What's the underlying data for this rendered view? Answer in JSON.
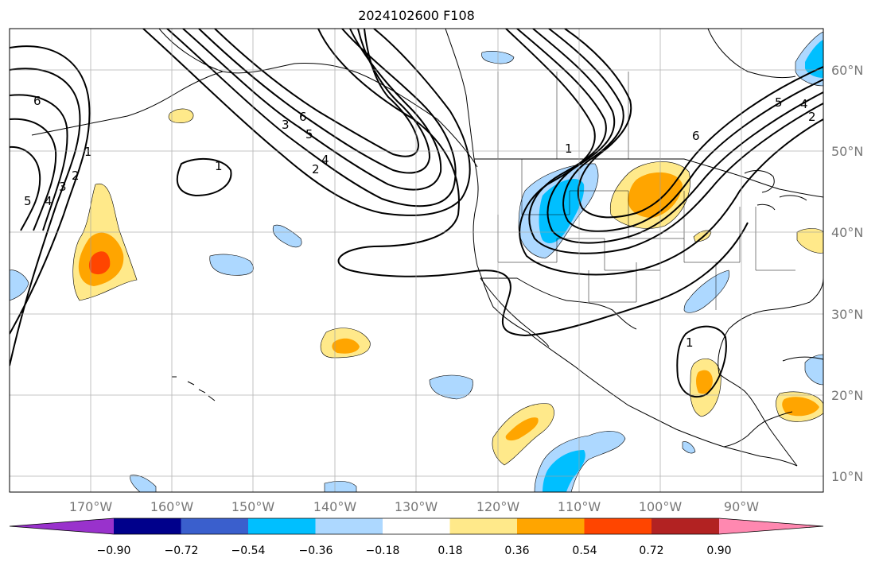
{
  "title": "2024102600 F108",
  "lat_labels": [
    "60°N",
    "50°N",
    "40°N",
    "30°N",
    "20°N",
    "10°N"
  ],
  "lon_labels": [
    "170°W",
    "160°W",
    "150°W",
    "140°W",
    "130°W",
    "120°W",
    "110°W",
    "100°W",
    "90°W"
  ],
  "colorbar": {
    "ticks": [
      "−0.90",
      "−0.72",
      "−0.54",
      "−0.36",
      "−0.18",
      "0.18",
      "0.36",
      "0.54",
      "0.72",
      "0.90"
    ],
    "colors": [
      "#9932cc",
      "#00008b",
      "#3a5fcd",
      "#00bfff",
      "#add8ff",
      "#ffffff",
      "#ffe98a",
      "#ffa500",
      "#ff4500",
      "#b22222",
      "#ff88b0"
    ]
  },
  "contour_labels": [
    "6",
    "5",
    "4",
    "3",
    "2",
    "1",
    "1",
    "3",
    "5",
    "6",
    "4",
    "2",
    "1",
    "6",
    "5",
    "4",
    "2",
    "1"
  ]
}
